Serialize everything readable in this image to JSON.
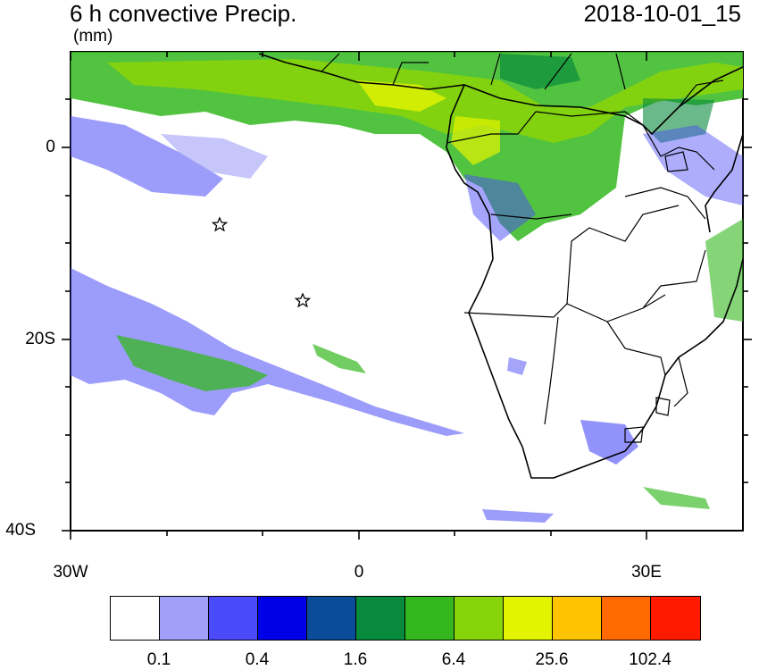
{
  "header": {
    "title": "6 h convective Precip.",
    "datetime": "2018-10-01_15",
    "units": "(mm)"
  },
  "axes": {
    "lat_ticks": [
      "0",
      "20S",
      "40S"
    ],
    "lon_ticks": [
      "30W",
      "0",
      "30E"
    ]
  },
  "colorbar": {
    "colors": [
      "#ffffff",
      "#a0a0f8",
      "#4a4af8",
      "#0000e8",
      "#0a4c9a",
      "#088a3c",
      "#34b81e",
      "#88d40a",
      "#e4f400",
      "#ffc400",
      "#ff6a00",
      "#ff1a00"
    ],
    "labels": [
      "0.1",
      "0.4",
      "1.6",
      "6.4",
      "25.6",
      "102.4"
    ]
  },
  "markers": {
    "icon": "star-icon",
    "count": 2
  }
}
